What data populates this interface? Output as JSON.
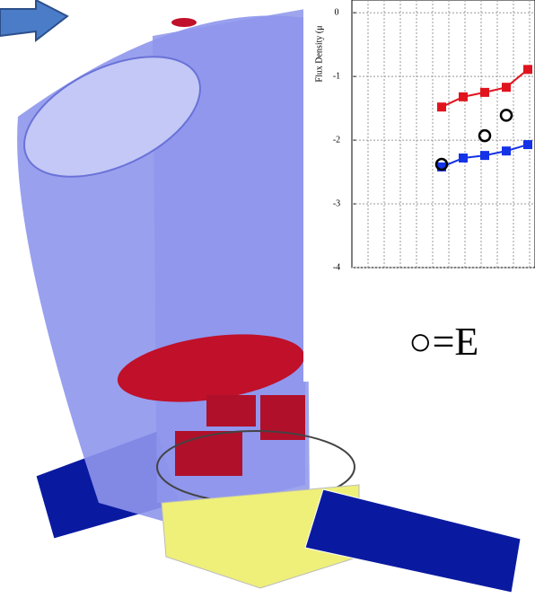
{
  "chart_data": {
    "type": "line",
    "ylabel": "Flux Density (μ",
    "annotation": "○=E",
    "categories": [
      null,
      null,
      null,
      null,
      null
    ],
    "ylim": [
      -4,
      0.2
    ],
    "yticks": [
      0,
      -1,
      -2,
      -3,
      -4
    ],
    "grid": true,
    "series": [
      {
        "color": "#e0141e",
        "marker": "square",
        "line": true,
        "values": [
          -1.48,
          -1.32,
          -1.25,
          -1.17,
          -0.89
        ]
      },
      {
        "color": "#1432e6",
        "marker": "square",
        "line": true,
        "values": [
          -2.42,
          -2.28,
          -2.24,
          -2.17,
          -2.07
        ]
      },
      {
        "color": "#000000",
        "marker": "circle",
        "line": false,
        "values": [
          -2.38,
          null,
          -1.93,
          -1.61,
          null
        ]
      }
    ]
  }
}
